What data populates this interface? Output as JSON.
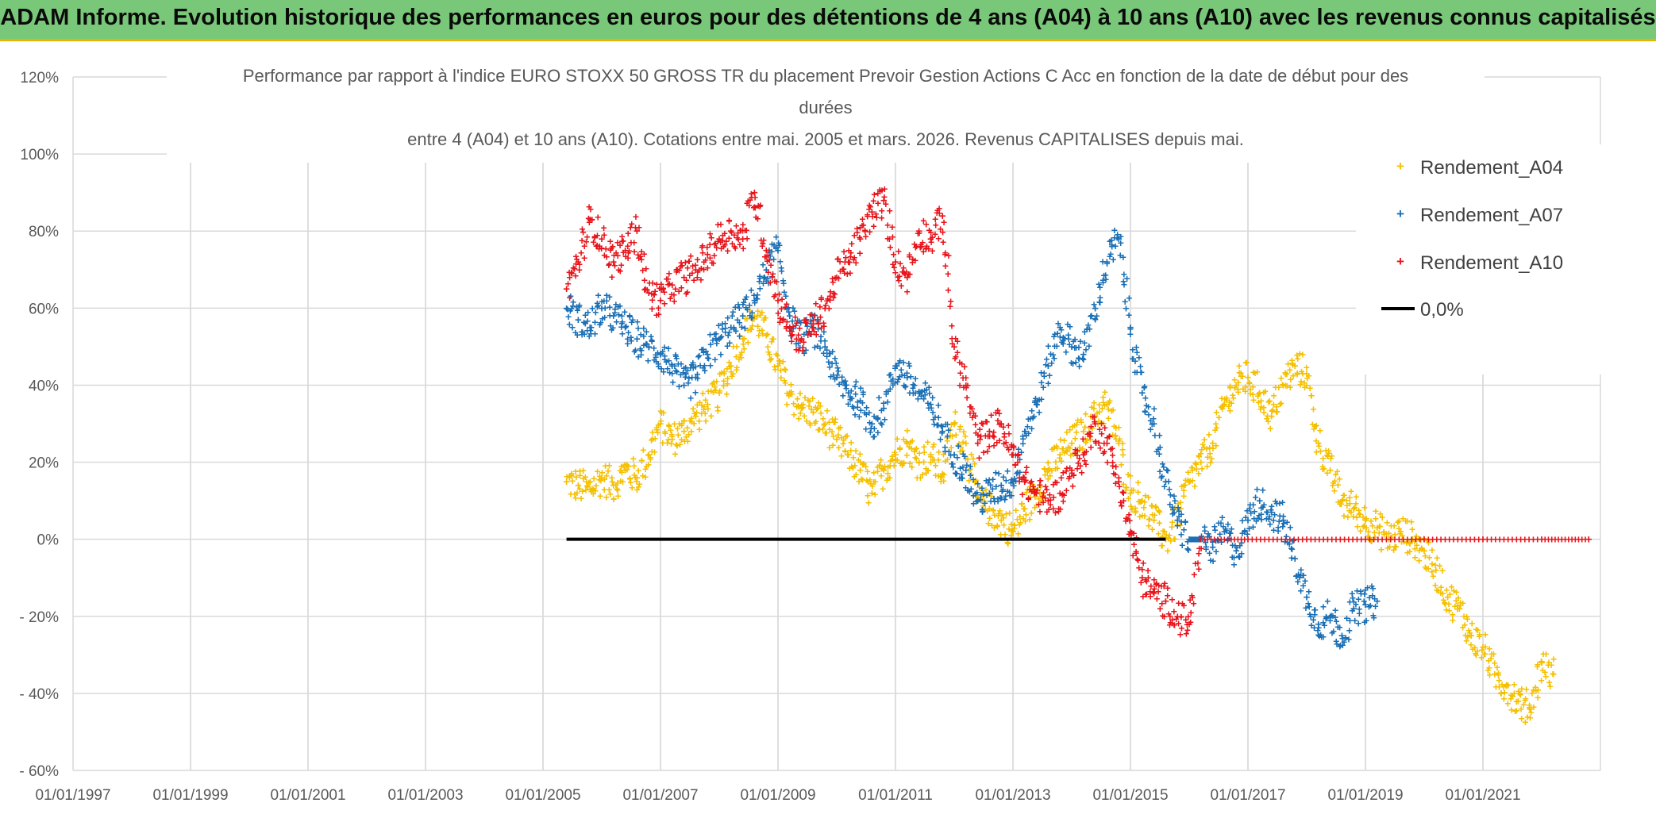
{
  "banner": {
    "title": "ADAM Informe. Evolution historique des performances en euros pour des détentions de 4 ans (A04) à 10 ans (A10) avec les revenus connus capitalisés"
  },
  "colors": {
    "banner_bg": "#79c879",
    "banner_border": "#e8b400",
    "grid": "#d9d9d9",
    "a04": "#f5c000",
    "a07": "#1a6fb5",
    "a10": "#e8141b",
    "zero": "#000000"
  },
  "chart_data": {
    "type": "scatter",
    "title_lines": [
      "Performance par rapport à l'indice EURO STOXX 50 GROSS TR  du placement Prevoir Gestion Actions C Acc en fonction de la date de début pour des",
      "durées",
      "entre 4 (A04) et 10 ans (A10). Cotations entre mai. 2005 et mars. 2026. Revenus CAPITALISES depuis mai."
    ],
    "xlabel": "",
    "ylabel": "",
    "xlim": [
      1997.0,
      2023.0
    ],
    "ylim": [
      -60,
      120
    ],
    "grid": true,
    "legend_position": "top-right",
    "x_ticks": [
      1997,
      1999,
      2001,
      2003,
      2005,
      2007,
      2009,
      2011,
      2013,
      2015,
      2017,
      2019,
      2021
    ],
    "x_tick_labels": [
      "01/01/1997",
      "01/01/1999",
      "01/01/2001",
      "01/01/2003",
      "01/01/2005",
      "01/01/2007",
      "01/01/2009",
      "01/01/2011",
      "01/01/2013",
      "01/01/2015",
      "01/01/2017",
      "01/01/2019",
      "01/01/2021"
    ],
    "y_ticks": [
      120,
      100,
      80,
      60,
      40,
      20,
      0,
      -20,
      -40,
      -60
    ],
    "y_tick_labels": [
      "120%",
      "100%",
      "80%",
      "60%",
      "40%",
      "20%",
      "0%",
      "- 20%",
      "- 40%",
      "- 60%"
    ],
    "series": [
      {
        "name": "Rendement_A04",
        "color": "#f5c000",
        "marker": "+",
        "points": [
          [
            2005.4,
            15
          ],
          [
            2005.6,
            14
          ],
          [
            2005.8,
            13
          ],
          [
            2006.0,
            16
          ],
          [
            2006.2,
            14
          ],
          [
            2006.4,
            18
          ],
          [
            2006.6,
            16
          ],
          [
            2006.8,
            22
          ],
          [
            2007.0,
            30
          ],
          [
            2007.2,
            26
          ],
          [
            2007.4,
            28
          ],
          [
            2007.6,
            32
          ],
          [
            2007.8,
            35
          ],
          [
            2008.0,
            38
          ],
          [
            2008.2,
            45
          ],
          [
            2008.4,
            52
          ],
          [
            2008.6,
            58
          ],
          [
            2008.8,
            53
          ],
          [
            2009.0,
            45
          ],
          [
            2009.2,
            38
          ],
          [
            2009.4,
            34
          ],
          [
            2009.6,
            33
          ],
          [
            2009.8,
            30
          ],
          [
            2010.0,
            26
          ],
          [
            2010.2,
            22
          ],
          [
            2010.4,
            18
          ],
          [
            2010.6,
            12
          ],
          [
            2010.8,
            18
          ],
          [
            2011.0,
            22
          ],
          [
            2011.2,
            25
          ],
          [
            2011.4,
            20
          ],
          [
            2011.6,
            22
          ],
          [
            2011.8,
            17
          ],
          [
            2012.0,
            30
          ],
          [
            2012.2,
            25
          ],
          [
            2012.4,
            10
          ],
          [
            2012.6,
            8
          ],
          [
            2012.8,
            5
          ],
          [
            2013.0,
            2
          ],
          [
            2013.2,
            8
          ],
          [
            2013.4,
            12
          ],
          [
            2013.6,
            18
          ],
          [
            2013.8,
            22
          ],
          [
            2014.0,
            25
          ],
          [
            2014.2,
            28
          ],
          [
            2014.4,
            32
          ],
          [
            2014.6,
            35
          ],
          [
            2014.8,
            25
          ],
          [
            2015.0,
            12
          ],
          [
            2015.2,
            10
          ],
          [
            2015.4,
            5
          ],
          [
            2015.6,
            0
          ],
          [
            2015.8,
            5
          ],
          [
            2016.0,
            15
          ],
          [
            2016.2,
            20
          ],
          [
            2016.4,
            25
          ],
          [
            2016.6,
            35
          ],
          [
            2016.8,
            40
          ],
          [
            2017.0,
            42
          ],
          [
            2017.2,
            38
          ],
          [
            2017.4,
            32
          ],
          [
            2017.6,
            40
          ],
          [
            2017.8,
            45
          ],
          [
            2018.0,
            43
          ],
          [
            2018.2,
            25
          ],
          [
            2018.4,
            18
          ],
          [
            2018.6,
            10
          ],
          [
            2018.8,
            8
          ],
          [
            2019.0,
            5
          ],
          [
            2019.2,
            3
          ],
          [
            2019.4,
            0
          ],
          [
            2019.6,
            2
          ],
          [
            2019.8,
            0
          ],
          [
            2020.0,
            -3
          ],
          [
            2020.2,
            -8
          ],
          [
            2020.4,
            -15
          ],
          [
            2020.6,
            -18
          ],
          [
            2020.8,
            -25
          ],
          [
            2021.0,
            -28
          ],
          [
            2021.2,
            -35
          ],
          [
            2021.4,
            -38
          ],
          [
            2021.6,
            -42
          ],
          [
            2021.8,
            -44
          ],
          [
            2022.0,
            -32
          ],
          [
            2022.2,
            -35
          ]
        ]
      },
      {
        "name": "Rendement_A07",
        "color": "#1a6fb5",
        "marker": "+",
        "points": [
          [
            2005.4,
            60
          ],
          [
            2005.6,
            57
          ],
          [
            2005.8,
            55
          ],
          [
            2006.0,
            60
          ],
          [
            2006.2,
            58
          ],
          [
            2006.4,
            55
          ],
          [
            2006.6,
            52
          ],
          [
            2006.8,
            50
          ],
          [
            2007.0,
            48
          ],
          [
            2007.2,
            45
          ],
          [
            2007.4,
            40
          ],
          [
            2007.6,
            42
          ],
          [
            2007.8,
            48
          ],
          [
            2008.0,
            52
          ],
          [
            2008.2,
            55
          ],
          [
            2008.4,
            58
          ],
          [
            2008.6,
            62
          ],
          [
            2008.8,
            70
          ],
          [
            2009.0,
            75
          ],
          [
            2009.2,
            58
          ],
          [
            2009.4,
            52
          ],
          [
            2009.6,
            55
          ],
          [
            2009.8,
            50
          ],
          [
            2010.0,
            42
          ],
          [
            2010.2,
            38
          ],
          [
            2010.4,
            36
          ],
          [
            2010.6,
            30
          ],
          [
            2010.8,
            34
          ],
          [
            2011.0,
            45
          ],
          [
            2011.2,
            42
          ],
          [
            2011.4,
            38
          ],
          [
            2011.6,
            35
          ],
          [
            2011.8,
            28
          ],
          [
            2012.0,
            22
          ],
          [
            2012.2,
            18
          ],
          [
            2012.4,
            10
          ],
          [
            2012.6,
            12
          ],
          [
            2012.8,
            14
          ],
          [
            2013.0,
            15
          ],
          [
            2013.2,
            28
          ],
          [
            2013.4,
            35
          ],
          [
            2013.6,
            45
          ],
          [
            2013.8,
            55
          ],
          [
            2014.0,
            50
          ],
          [
            2014.2,
            48
          ],
          [
            2014.4,
            60
          ],
          [
            2014.6,
            72
          ],
          [
            2014.8,
            78
          ],
          [
            2015.0,
            55
          ],
          [
            2015.2,
            38
          ],
          [
            2015.4,
            30
          ],
          [
            2015.6,
            15
          ],
          [
            2015.8,
            5
          ],
          [
            2016.0,
            0
          ],
          [
            2016.2,
            0
          ],
          [
            2016.4,
            -2
          ],
          [
            2016.6,
            2
          ],
          [
            2016.8,
            -3
          ],
          [
            2017.0,
            5
          ],
          [
            2017.2,
            10
          ],
          [
            2017.4,
            7
          ],
          [
            2017.6,
            5
          ],
          [
            2017.8,
            -5
          ],
          [
            2018.0,
            -15
          ],
          [
            2018.2,
            -22
          ],
          [
            2018.4,
            -20
          ],
          [
            2018.6,
            -25
          ],
          [
            2018.8,
            -18
          ],
          [
            2019.0,
            -17
          ],
          [
            2019.2,
            -16
          ]
        ]
      },
      {
        "name": "Rendement_A10",
        "color": "#e8141b",
        "marker": "+",
        "points": [
          [
            2005.4,
            65
          ],
          [
            2005.6,
            72
          ],
          [
            2005.8,
            83
          ],
          [
            2006.0,
            78
          ],
          [
            2006.2,
            72
          ],
          [
            2006.4,
            75
          ],
          [
            2006.6,
            80
          ],
          [
            2006.8,
            64
          ],
          [
            2007.0,
            62
          ],
          [
            2007.2,
            66
          ],
          [
            2007.4,
            68
          ],
          [
            2007.6,
            70
          ],
          [
            2007.8,
            74
          ],
          [
            2008.0,
            78
          ],
          [
            2008.2,
            80
          ],
          [
            2008.4,
            78
          ],
          [
            2008.6,
            90
          ],
          [
            2008.8,
            75
          ],
          [
            2009.0,
            62
          ],
          [
            2009.2,
            55
          ],
          [
            2009.4,
            52
          ],
          [
            2009.6,
            56
          ],
          [
            2009.8,
            60
          ],
          [
            2010.0,
            68
          ],
          [
            2010.2,
            72
          ],
          [
            2010.4,
            78
          ],
          [
            2010.6,
            85
          ],
          [
            2010.8,
            88
          ],
          [
            2011.0,
            72
          ],
          [
            2011.2,
            68
          ],
          [
            2011.4,
            80
          ],
          [
            2011.6,
            78
          ],
          [
            2011.8,
            84
          ],
          [
            2012.0,
            50
          ],
          [
            2012.2,
            40
          ],
          [
            2012.4,
            25
          ],
          [
            2012.6,
            28
          ],
          [
            2012.8,
            30
          ],
          [
            2013.0,
            22
          ],
          [
            2013.2,
            15
          ],
          [
            2013.4,
            12
          ],
          [
            2013.6,
            10
          ],
          [
            2013.8,
            12
          ],
          [
            2014.0,
            18
          ],
          [
            2014.2,
            22
          ],
          [
            2014.4,
            30
          ],
          [
            2014.6,
            25
          ],
          [
            2014.8,
            15
          ],
          [
            2015.0,
            2
          ],
          [
            2015.2,
            -10
          ],
          [
            2015.4,
            -14
          ],
          [
            2015.6,
            -16
          ],
          [
            2015.8,
            -20
          ],
          [
            2016.0,
            -22
          ],
          [
            2016.2,
            0
          ],
          [
            2017.0,
            0
          ],
          [
            2018.0,
            0
          ],
          [
            2019.0,
            0
          ],
          [
            2020.0,
            0
          ],
          [
            2021.0,
            0
          ],
          [
            2022.0,
            0
          ],
          [
            2022.8,
            0
          ]
        ]
      }
    ],
    "reference_line": {
      "name": "0,0%",
      "value": 0,
      "x_start": 2005.4,
      "x_end": 2015.6,
      "color": "#000000"
    }
  }
}
